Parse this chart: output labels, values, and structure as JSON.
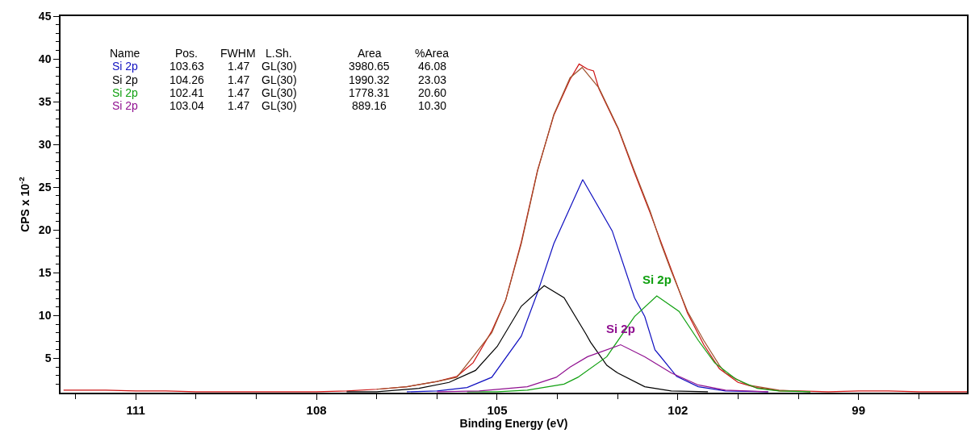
{
  "chart_data": {
    "type": "line",
    "xlabel": "Binding Energy (eV)",
    "ylabel": "CPS x 10$^{-2}$",
    "xlim": [
      112.25,
      97.2
    ],
    "ylim": [
      1,
      45
    ],
    "xticks": [
      {
        "value": 112,
        "label": null
      },
      111,
      {
        "value": 110,
        "label": null
      },
      {
        "value": 109,
        "label": null
      },
      108,
      {
        "value": 107,
        "label": null
      },
      {
        "value": 106,
        "label": null
      },
      105,
      {
        "value": 104,
        "label": null
      },
      {
        "value": 103,
        "label": null
      },
      102,
      {
        "value": 101,
        "label": null
      },
      {
        "value": 100,
        "label": null
      },
      99,
      {
        "value": 98,
        "label": null
      }
    ],
    "yticks": [
      {
        "value": 2,
        "label": null
      },
      {
        "value": 3,
        "label": null
      },
      {
        "value": 4,
        "label": null
      },
      5,
      {
        "value": 6,
        "label": null
      },
      {
        "value": 7,
        "label": null
      },
      {
        "value": 8,
        "label": null
      },
      {
        "value": 9,
        "label": null
      },
      10,
      {
        "value": 11,
        "label": null
      },
      {
        "value": 12,
        "label": null
      },
      {
        "value": 13,
        "label": null
      },
      {
        "value": 14,
        "label": null
      },
      15,
      {
        "value": 16,
        "label": null
      },
      {
        "value": 17,
        "label": null
      },
      {
        "value": 18,
        "label": null
      },
      {
        "value": 19,
        "label": null
      },
      20,
      {
        "value": 21,
        "label": null
      },
      {
        "value": 22,
        "label": null
      },
      {
        "value": 23,
        "label": null
      },
      {
        "value": 24,
        "label": null
      },
      25,
      {
        "value": 26,
        "label": null
      },
      {
        "value": 27,
        "label": null
      },
      {
        "value": 28,
        "label": null
      },
      {
        "value": 29,
        "label": null
      },
      30,
      {
        "value": 31,
        "label": null
      },
      {
        "value": 32,
        "label": null
      },
      {
        "value": 33,
        "label": null
      },
      {
        "value": 34,
        "label": null
      },
      35,
      {
        "value": 36,
        "label": null
      },
      {
        "value": 37,
        "label": null
      },
      {
        "value": 38,
        "label": null
      },
      {
        "value": 39,
        "label": null
      },
      40,
      {
        "value": 41,
        "label": null
      },
      {
        "value": 42,
        "label": null
      },
      {
        "value": 43,
        "label": null
      },
      {
        "value": 44,
        "label": null
      },
      45
    ],
    "legend": false,
    "marker": "none",
    "line_style": "solid",
    "series": [
      {
        "color": "#cc1010",
        "x": [
          112.2,
          111.8,
          111.5,
          111.0,
          110.5,
          110.0,
          109.0,
          108.0,
          107.5,
          107.0,
          106.5,
          106.0,
          105.67,
          105.4,
          105.09,
          104.86,
          104.6,
          104.33,
          104.06,
          103.79,
          103.64,
          103.5,
          103.4,
          103.31,
          102.99,
          102.72,
          102.46,
          102.28,
          102.11,
          101.84,
          101.57,
          101.31,
          101.0,
          100.7,
          100.3,
          100.0,
          99.5,
          99.0,
          98.5,
          98.0,
          97.2
        ],
        "values": [
          1.3,
          1.3,
          1.3,
          1.2,
          1.2,
          1.1,
          1.1,
          1.1,
          1.2,
          1.4,
          1.7,
          2.3,
          2.9,
          4.5,
          8.2,
          11.8,
          18.6,
          27.0,
          33.4,
          37.6,
          39.4,
          38.8,
          38.6,
          36.5,
          31.8,
          26.7,
          22.0,
          18.6,
          15.4,
          10.3,
          6.6,
          3.8,
          2.2,
          1.6,
          1.2,
          1.2,
          1.1,
          1.2,
          1.2,
          1.1,
          1.1
        ]
      },
      {
        "color": "#a0522d",
        "x": [
          107.0,
          106.5,
          106.0,
          105.67,
          105.09,
          104.86,
          104.6,
          104.33,
          104.06,
          103.79,
          103.59,
          103.31,
          102.99,
          102.72,
          102.46,
          102.28,
          102.11,
          101.84,
          101.57,
          101.31,
          101.21,
          100.85,
          100.32,
          99.8
        ],
        "values": [
          1.4,
          1.7,
          2.3,
          2.8,
          8.0,
          11.8,
          18.4,
          26.9,
          33.5,
          37.8,
          39.0,
          36.6,
          31.9,
          26.9,
          22.2,
          18.4,
          15.2,
          10.5,
          7.1,
          4.2,
          3.3,
          1.9,
          1.3,
          1.1
        ]
      },
      {
        "name": "Si 2p",
        "color": "#1010c0",
        "x": [
          106.5,
          106.0,
          105.5,
          105.09,
          104.6,
          104.33,
          104.06,
          103.58,
          103.09,
          102.72,
          102.55,
          102.38,
          102.32,
          102.02,
          101.66,
          101.21,
          100.5
        ],
        "values": [
          1.1,
          1.2,
          1.6,
          2.8,
          7.6,
          12.7,
          18.4,
          25.9,
          19.9,
          12.1,
          9.9,
          6.0,
          5.5,
          2.9,
          1.7,
          1.2,
          1.1
        ]
      },
      {
        "name": "Si 2p",
        "color": "#000000",
        "x": [
          107.5,
          107.0,
          106.3,
          105.8,
          105.36,
          105.0,
          104.6,
          104.22,
          103.89,
          103.53,
          103.45,
          103.18,
          103.0,
          102.55,
          102.11,
          101.5
        ],
        "values": [
          1.1,
          1.1,
          1.5,
          2.2,
          3.6,
          6.4,
          11.1,
          13.5,
          12.1,
          7.9,
          6.9,
          4.2,
          3.3,
          1.7,
          1.2,
          1.1
        ]
      },
      {
        "name": "Si 2p",
        "color": "#10a010",
        "x": [
          105.5,
          105.0,
          104.5,
          103.89,
          103.66,
          103.18,
          102.72,
          102.35,
          101.98,
          101.66,
          101.39,
          101.04,
          100.68,
          100.32,
          99.8
        ],
        "values": [
          1.1,
          1.1,
          1.3,
          2.0,
          2.8,
          5.2,
          9.9,
          12.3,
          10.5,
          7.1,
          4.5,
          2.6,
          1.5,
          1.2,
          1.1
        ]
      },
      {
        "name": "Si 2p",
        "color": "#901090",
        "x": [
          106.0,
          105.3,
          104.5,
          104.02,
          103.79,
          103.5,
          102.95,
          102.55,
          102.11,
          101.66,
          101.21,
          100.5
        ],
        "values": [
          1.1,
          1.2,
          1.7,
          2.8,
          4.0,
          5.2,
          6.6,
          5.2,
          3.3,
          1.9,
          1.3,
          1.1
        ]
      }
    ],
    "annotations": [
      "Name",
      "Pos.",
      "FWHM",
      "L.Sh.",
      "Area",
      "%Area",
      "103.63",
      "1.47",
      "GL(30)",
      "3980.65",
      "46.08",
      "104.26",
      "1.47",
      "GL(30)",
      "1990.32",
      "23.03",
      "102.41",
      "1.47",
      "GL(30)",
      "1778.31",
      "20.60",
      "103.04",
      "1.47",
      "GL(30)",
      "889.16",
      "10.30",
      {
        "text": "Si 2p",
        "x": 102.35,
        "y": 12.3
      },
      {
        "text": "Si 2p",
        "x": 102.95,
        "y": 6.6
      }
    ]
  }
}
